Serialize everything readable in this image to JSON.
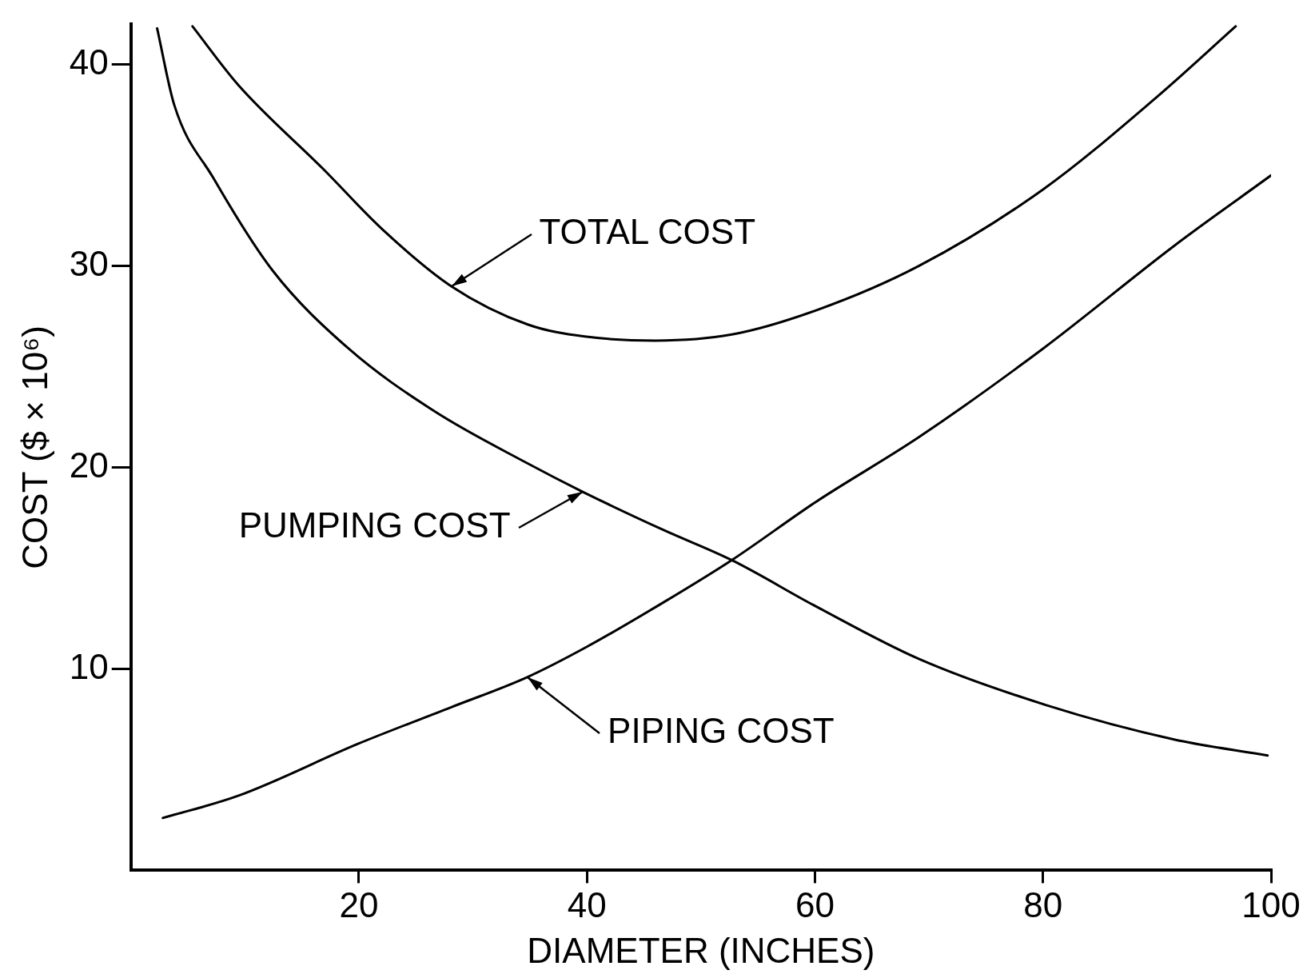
{
  "chart_data": {
    "type": "line",
    "xlabel": "DIAMETER (INCHES)",
    "ylabel": "COST ($ × 10⁶)",
    "xlim": [
      0,
      100
    ],
    "xticks": [
      20,
      40,
      60,
      80,
      100
    ],
    "ylim": [
      0,
      42
    ],
    "yticks": [
      10,
      20,
      30,
      40
    ],
    "grid": false,
    "legend": false,
    "marker": "none",
    "line_style": "solid",
    "series": [
      {
        "color": "#000000",
        "x": [
          5.4,
          9.4,
          16.9,
          22.1,
          28.1,
          34.8,
          39.8,
          46,
          52.7,
          60.1,
          69.1,
          80,
          90,
          96.9
        ],
        "values": [
          41.9,
          39.0,
          34.8,
          31.8,
          29.0,
          27.1,
          26.5,
          26.3,
          26.6,
          27.8,
          30.0,
          33.8,
          38.4,
          41.9
        ]
      },
      {
        "color": "#000000",
        "x": [
          2.3,
          3.8,
          7.2,
          12.4,
          19.1,
          26.6,
          34.8,
          39.6,
          46.7,
          52.7,
          60.1,
          69.1,
          80.3,
          91.5,
          99.7
        ],
        "values": [
          41.8,
          38.0,
          34.4,
          29.8,
          25.9,
          22.8,
          20.2,
          18.8,
          16.9,
          15.4,
          13.1,
          10.5,
          8.2,
          6.5,
          5.7
        ]
      },
      {
        "color": "#000000",
        "x": [
          2.8,
          9.4,
          20,
          28.1,
          34.8,
          40,
          46.7,
          52.7,
          60.1,
          69.1,
          80,
          91.5,
          100
        ],
        "values": [
          2.6,
          3.7,
          6.3,
          8.1,
          9.6,
          11.1,
          13.3,
          15.4,
          18.3,
          21.5,
          25.9,
          31.0,
          34.5
        ]
      }
    ],
    "annotations": [
      {
        "text": "TOTAL COST",
        "x": 28.1,
        "y": 29.0
      },
      {
        "text": "PUMPING COST",
        "x": 39.6,
        "y": 18.8
      },
      {
        "text": "PIPING COST",
        "x": 34.8,
        "y": 9.6
      }
    ]
  }
}
